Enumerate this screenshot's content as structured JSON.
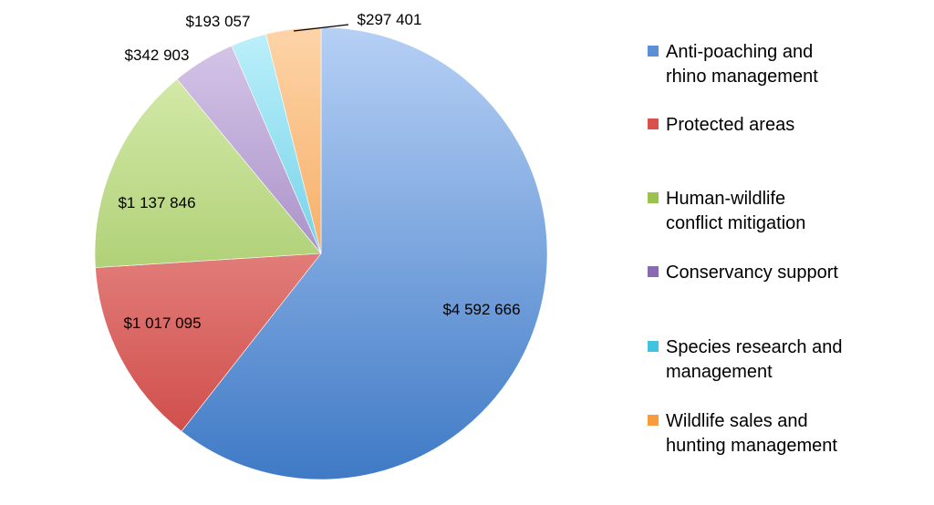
{
  "chart_data": {
    "type": "pie",
    "title": "",
    "slices": [
      {
        "name": "Anti-poaching and\nrhino management",
        "value": 4592666,
        "label": "$4 592 666",
        "color": "#5b8fd6",
        "gradient": [
          "#b6d0f5",
          "#3f7ac6"
        ]
      },
      {
        "name": "Protected areas",
        "value": 1017095,
        "label": "$1 017 095",
        "color": "#d9504c",
        "gradient": [
          "#f7b6b2",
          "#cc4340"
        ]
      },
      {
        "name": "Human-wildlife\nconflict mitigation",
        "value": 1137846,
        "label": "$1 137 846",
        "color": "#9bc14e",
        "gradient": [
          "#dcefb4",
          "#8ab743"
        ]
      },
      {
        "name": "Conservancy support",
        "value": 342903,
        "label": "$342 903",
        "color": "#8a6bb3",
        "gradient": [
          "#d8c8ea",
          "#7d5fa8"
        ]
      },
      {
        "name": "Species research and\nmanagement",
        "value": 193057,
        "label": "$193 057",
        "color": "#3fc3e0",
        "gradient": [
          "#bdf0fb",
          "#2eb6d6"
        ]
      },
      {
        "name": "Wildlife sales and\nhunting management",
        "value": 297401,
        "label": "$297 401",
        "color": "#f79b3d",
        "gradient": [
          "#fdd4a8",
          "#f18b2a"
        ]
      }
    ],
    "legend_position": "right"
  }
}
